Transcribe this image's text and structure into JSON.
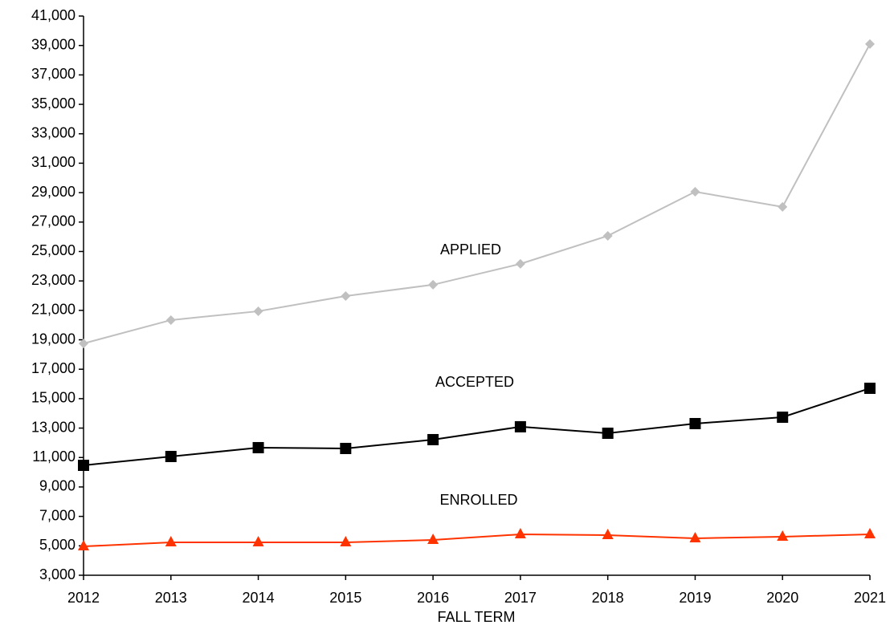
{
  "chart_data": {
    "type": "line",
    "xlabel": "FALL TERM",
    "x": [
      2012,
      2013,
      2014,
      2015,
      2016,
      2017,
      2018,
      2019,
      2020,
      2021
    ],
    "xlim": [
      2012,
      2021
    ],
    "xticks": [
      2012,
      2013,
      2014,
      2015,
      2016,
      2017,
      2018,
      2019,
      2020,
      2021
    ],
    "ylim": [
      3000,
      41000
    ],
    "yticks": [
      {
        "value": 3000,
        "label": "3,000"
      },
      {
        "value": 5000,
        "label": "5,000"
      },
      {
        "value": 7000,
        "label": "7,000"
      },
      {
        "value": 9000,
        "label": "9,000"
      },
      {
        "value": 11000,
        "label": "11,000"
      },
      {
        "value": 13000,
        "label": "13,000"
      },
      {
        "value": 15000,
        "label": "15,000"
      },
      {
        "value": 17000,
        "label": "17,000"
      },
      {
        "value": 19000,
        "label": "19,000"
      },
      {
        "value": 21000,
        "label": "21,000"
      },
      {
        "value": 23000,
        "label": "23,000"
      },
      {
        "value": 25000,
        "label": "25,000"
      },
      {
        "value": 27000,
        "label": "27,000"
      },
      {
        "value": 29000,
        "label": "29,000"
      },
      {
        "value": 31000,
        "label": "31,000"
      },
      {
        "value": 33000,
        "label": "33,000"
      },
      {
        "value": 35000,
        "label": "35,000"
      },
      {
        "value": 37000,
        "label": "37,000"
      },
      {
        "value": 39000,
        "label": "39,000"
      },
      {
        "value": 41000,
        "label": "41,000"
      }
    ],
    "grid": false,
    "series": [
      {
        "name": "APPLIED",
        "color": "#c0c0c0",
        "marker": "diamond",
        "values": [
          18750,
          20340,
          20940,
          21975,
          22740,
          24160,
          26065,
          29060,
          28030,
          39100
        ]
      },
      {
        "name": "ACCEPTED",
        "color": "#000000",
        "marker": "square",
        "values": [
          10470,
          11070,
          11670,
          11615,
          12215,
          13090,
          12650,
          13305,
          13740,
          15705
        ]
      },
      {
        "name": "ENROLLED",
        "color": "#ff3300",
        "marker": "triangle",
        "values": [
          4960,
          5235,
          5235,
          5235,
          5400,
          5780,
          5725,
          5510,
          5620,
          5780
        ]
      }
    ]
  }
}
